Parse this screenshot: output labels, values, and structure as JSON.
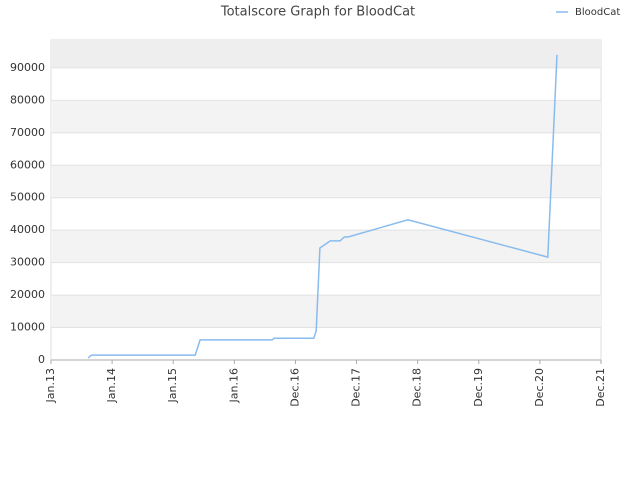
{
  "chart_data": {
    "type": "line",
    "title": "Totalscore Graph for BloodCat",
    "x": [
      0.61,
      0.64,
      0.67,
      2.36,
      2.44,
      3.62,
      3.65,
      4.3,
      4.34,
      4.4,
      4.57,
      4.73,
      4.8,
      4.86,
      5.84,
      8.13,
      8.28
    ],
    "series": [
      {
        "name": "BloodCat",
        "color": "#88bbee",
        "values": [
          600,
          1200,
          1500,
          1500,
          6200,
          6200,
          6700,
          6700,
          9000,
          34500,
          36700,
          36700,
          37900,
          37900,
          43200,
          31700,
          94000
        ]
      }
    ],
    "xlim": [
      0,
      9
    ],
    "xticks": [
      {
        "value": 0,
        "label": "Jan.13"
      },
      {
        "value": 1,
        "label": "Jan.14"
      },
      {
        "value": 2,
        "label": "Jan.15"
      },
      {
        "value": 3,
        "label": "Jan.16"
      },
      {
        "value": 4,
        "label": "Dec.16"
      },
      {
        "value": 5,
        "label": "Dec.17"
      },
      {
        "value": 6,
        "label": "Dec.18"
      },
      {
        "value": 7,
        "label": "Dec.19"
      },
      {
        "value": 8,
        "label": "Dec.20"
      },
      {
        "value": 9,
        "label": "Dec.21"
      }
    ],
    "ylim": [
      0,
      98600
    ],
    "yticks": [
      0,
      10000,
      20000,
      30000,
      40000,
      50000,
      60000,
      70000,
      80000,
      90000
    ],
    "grid": true,
    "legend": "top-right"
  }
}
